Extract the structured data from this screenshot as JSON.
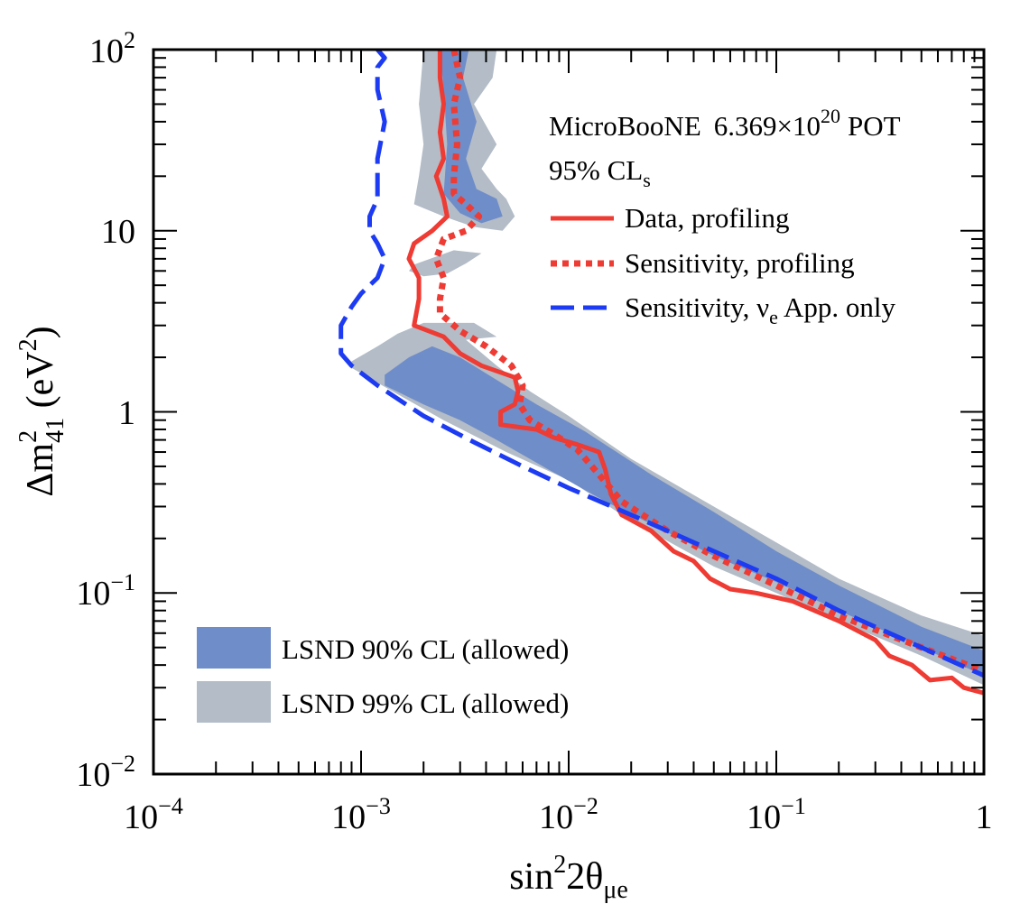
{
  "chart_data": {
    "type": "line",
    "title": "",
    "annotation": {
      "experiment": "MicroBooNE",
      "pot_mantissa": "6.369",
      "pot_times": "×10",
      "pot_exp": "20",
      "pot_unit": "POT",
      "cl_main": "95% CL",
      "cl_sub": "s"
    },
    "xlabel": {
      "main": "sin",
      "sup": "2",
      "mid": "2θ",
      "sub": "μe"
    },
    "ylabel": {
      "main": "Δm",
      "sup": "2",
      "sub": "41",
      "unit_open": " (eV",
      "unit_sup": "2",
      "unit_close": ")"
    },
    "xscale": "log",
    "yscale": "log",
    "xlim": [
      0.0001,
      1
    ],
    "ylim": [
      0.01,
      100
    ],
    "x_ticks": [
      {
        "value": 0.0001,
        "base": "10",
        "exp": "−4"
      },
      {
        "value": 0.001,
        "base": "10",
        "exp": "−3"
      },
      {
        "value": 0.01,
        "base": "10",
        "exp": "−2"
      },
      {
        "value": 0.1,
        "base": "10",
        "exp": "−1"
      },
      {
        "value": 1,
        "base": "1",
        "exp": ""
      }
    ],
    "y_ticks": [
      {
        "value": 0.01,
        "base": "10",
        "exp": "−2"
      },
      {
        "value": 0.1,
        "base": "10",
        "exp": "−1"
      },
      {
        "value": 1,
        "base": "1",
        "exp": ""
      },
      {
        "value": 10,
        "base": "10",
        "exp": ""
      },
      {
        "value": 100,
        "base": "10",
        "exp": "2"
      }
    ],
    "legend_lines": {
      "position": "top-right",
      "entries": [
        {
          "key": "data",
          "label": "Data, profiling",
          "color": "#ee3b33",
          "style": "solid"
        },
        {
          "key": "sens",
          "label": "Sensitivity, profiling",
          "color": "#ee3b33",
          "style": "dotted"
        },
        {
          "key": "sens_nue",
          "label_pre": "Sensitivity, ν",
          "label_sub": "e",
          "label_post": " App. only",
          "color": "#1c3bf2",
          "style": "dashed"
        }
      ]
    },
    "legend_regions": {
      "position": "bottom-left",
      "entries": [
        {
          "key": "lsnd90",
          "label": "LSND 90% CL (allowed)",
          "color": "#6f8dc8"
        },
        {
          "key": "lsnd99",
          "label": "LSND 99% CL (allowed)",
          "color": "#b3bcc7"
        }
      ]
    },
    "regions": [
      {
        "name": "LSND 99% CL (allowed)",
        "color": "#b3bcc7",
        "points": [
          [
            0.0009,
            1.9
          ],
          [
            0.0012,
            2.3
          ],
          [
            0.0015,
            2.7
          ],
          [
            0.002,
            3.1
          ],
          [
            0.0035,
            3.1
          ],
          [
            0.0045,
            2.6
          ],
          [
            0.0032,
            2.5
          ],
          [
            0.0045,
            1.8
          ],
          [
            0.0065,
            1.3
          ],
          [
            0.01,
            0.95
          ],
          [
            0.02,
            0.55
          ],
          [
            0.05,
            0.3
          ],
          [
            0.1,
            0.19
          ],
          [
            0.2,
            0.12
          ],
          [
            0.5,
            0.075
          ],
          [
            1,
            0.058
          ],
          [
            1,
            0.031
          ],
          [
            0.5,
            0.045
          ],
          [
            0.2,
            0.07
          ],
          [
            0.1,
            0.1
          ],
          [
            0.05,
            0.14
          ],
          [
            0.02,
            0.25
          ],
          [
            0.01,
            0.42
          ],
          [
            0.005,
            0.6
          ],
          [
            0.0025,
            0.9
          ],
          [
            0.0015,
            1.25
          ],
          [
            0.0009,
            1.75
          ]
        ]
      },
      {
        "name": "LSND 90% CL (allowed)",
        "color": "#6f8dc8",
        "points": [
          [
            0.0013,
            1.6
          ],
          [
            0.0017,
            2.0
          ],
          [
            0.0022,
            2.3
          ],
          [
            0.003,
            2.0
          ],
          [
            0.0045,
            1.5
          ],
          [
            0.007,
            1.1
          ],
          [
            0.012,
            0.78
          ],
          [
            0.025,
            0.45
          ],
          [
            0.05,
            0.28
          ],
          [
            0.1,
            0.17
          ],
          [
            0.2,
            0.11
          ],
          [
            0.5,
            0.065
          ],
          [
            1,
            0.048
          ],
          [
            1,
            0.035
          ],
          [
            0.5,
            0.05
          ],
          [
            0.2,
            0.08
          ],
          [
            0.1,
            0.115
          ],
          [
            0.05,
            0.16
          ],
          [
            0.025,
            0.24
          ],
          [
            0.015,
            0.32
          ],
          [
            0.008,
            0.48
          ],
          [
            0.0045,
            0.7
          ],
          [
            0.003,
            0.9
          ],
          [
            0.002,
            1.1
          ],
          [
            0.0013,
            1.4
          ]
        ]
      },
      {
        "name": "LSND 99% CL (allowed)",
        "color": "#b3bcc7",
        "points": [
          [
            0.002,
            100
          ],
          [
            0.0045,
            100
          ],
          [
            0.0043,
            70
          ],
          [
            0.0035,
            50
          ],
          [
            0.0045,
            30
          ],
          [
            0.0038,
            22
          ],
          [
            0.0045,
            17
          ],
          [
            0.005,
            15
          ],
          [
            0.0055,
            12
          ],
          [
            0.0048,
            10
          ],
          [
            0.0035,
            10.5
          ],
          [
            0.0025,
            12
          ],
          [
            0.0018,
            14
          ],
          [
            0.0019,
            20
          ],
          [
            0.002,
            30
          ],
          [
            0.0019,
            50
          ]
        ]
      },
      {
        "name": "LSND 90% CL (allowed)",
        "color": "#6f8dc8",
        "points": [
          [
            0.0024,
            100
          ],
          [
            0.0033,
            100
          ],
          [
            0.0031,
            70
          ],
          [
            0.0036,
            40
          ],
          [
            0.0032,
            25
          ],
          [
            0.0036,
            17
          ],
          [
            0.0045,
            15
          ],
          [
            0.0048,
            12
          ],
          [
            0.0038,
            11
          ],
          [
            0.003,
            12.5
          ],
          [
            0.0025,
            16
          ],
          [
            0.0026,
            30
          ],
          [
            0.0025,
            60
          ]
        ]
      },
      {
        "name": "LSND 99% CL (allowed)",
        "color": "#b3bcc7",
        "points": [
          [
            0.0018,
            6.5
          ],
          [
            0.0028,
            7.8
          ],
          [
            0.0038,
            7.5
          ],
          [
            0.0032,
            6.6
          ],
          [
            0.0026,
            5.8
          ],
          [
            0.002,
            5.6
          ],
          [
            0.0017,
            6.0
          ]
        ]
      }
    ],
    "series": [
      {
        "name": "Data, profiling",
        "color": "#ee3b33",
        "style": "solid",
        "points": [
          [
            0.0024,
            100
          ],
          [
            0.0024,
            70
          ],
          [
            0.0025,
            50
          ],
          [
            0.0024,
            35
          ],
          [
            0.0025,
            25
          ],
          [
            0.0023,
            20
          ],
          [
            0.0025,
            15
          ],
          [
            0.0026,
            12
          ],
          [
            0.0022,
            10
          ],
          [
            0.0018,
            8.5
          ],
          [
            0.0017,
            7
          ],
          [
            0.0019,
            5.5
          ],
          [
            0.0019,
            4.2
          ],
          [
            0.0018,
            3.0
          ],
          [
            0.0025,
            2.6
          ],
          [
            0.003,
            2.1
          ],
          [
            0.0038,
            1.8
          ],
          [
            0.0055,
            1.55
          ],
          [
            0.0057,
            1.3
          ],
          [
            0.0055,
            1.1
          ],
          [
            0.0047,
            1.0
          ],
          [
            0.0047,
            0.85
          ],
          [
            0.007,
            0.8
          ],
          [
            0.0085,
            0.72
          ],
          [
            0.011,
            0.66
          ],
          [
            0.014,
            0.6
          ],
          [
            0.015,
            0.48
          ],
          [
            0.016,
            0.35
          ],
          [
            0.018,
            0.27
          ],
          [
            0.025,
            0.22
          ],
          [
            0.032,
            0.17
          ],
          [
            0.04,
            0.15
          ],
          [
            0.048,
            0.12
          ],
          [
            0.06,
            0.105
          ],
          [
            0.08,
            0.1
          ],
          [
            0.12,
            0.09
          ],
          [
            0.2,
            0.07
          ],
          [
            0.3,
            0.055
          ],
          [
            0.35,
            0.045
          ],
          [
            0.45,
            0.04
          ],
          [
            0.55,
            0.033
          ],
          [
            0.7,
            0.034
          ],
          [
            0.8,
            0.03
          ],
          [
            1,
            0.028
          ]
        ]
      },
      {
        "name": "Sensitivity, profiling",
        "color": "#ee3b33",
        "style": "dotted",
        "points": [
          [
            0.0028,
            100
          ],
          [
            0.003,
            70
          ],
          [
            0.0028,
            50
          ],
          [
            0.0029,
            30
          ],
          [
            0.0028,
            20
          ],
          [
            0.0028,
            16
          ],
          [
            0.0032,
            14
          ],
          [
            0.0037,
            12
          ],
          [
            0.0032,
            10
          ],
          [
            0.0025,
            9
          ],
          [
            0.0023,
            7
          ],
          [
            0.0025,
            5.5
          ],
          [
            0.0024,
            4.2
          ],
          [
            0.0024,
            3.5
          ],
          [
            0.003,
            2.8
          ],
          [
            0.004,
            2.3
          ],
          [
            0.0053,
            1.8
          ],
          [
            0.006,
            1.4
          ],
          [
            0.0058,
            1.1
          ],
          [
            0.0065,
            0.9
          ],
          [
            0.0085,
            0.75
          ],
          [
            0.011,
            0.62
          ],
          [
            0.014,
            0.45
          ],
          [
            0.018,
            0.32
          ],
          [
            0.03,
            0.22
          ],
          [
            0.05,
            0.16
          ],
          [
            0.1,
            0.11
          ],
          [
            0.2,
            0.075
          ],
          [
            0.5,
            0.05
          ],
          [
            1,
            0.037
          ]
        ]
      },
      {
        "name": "Sensitivity, νe App. only",
        "color": "#1c3bf2",
        "style": "dashed",
        "points": [
          [
            0.0012,
            100
          ],
          [
            0.0013,
            90
          ],
          [
            0.0012,
            80
          ],
          [
            0.0012,
            60
          ],
          [
            0.0013,
            40
          ],
          [
            0.0012,
            25
          ],
          [
            0.0012,
            15
          ],
          [
            0.0011,
            12
          ],
          [
            0.0011,
            10
          ],
          [
            0.0012,
            8.5
          ],
          [
            0.0013,
            7
          ],
          [
            0.0012,
            5.5
          ],
          [
            0.001,
            4.5
          ],
          [
            0.0009,
            3.8
          ],
          [
            0.0008,
            3.0
          ],
          [
            0.0008,
            2.5
          ],
          [
            0.0008,
            2.1
          ],
          [
            0.0009,
            1.8
          ],
          [
            0.0012,
            1.4
          ],
          [
            0.002,
            0.95
          ],
          [
            0.0035,
            0.68
          ],
          [
            0.006,
            0.5
          ],
          [
            0.01,
            0.38
          ],
          [
            0.02,
            0.27
          ],
          [
            0.05,
            0.17
          ],
          [
            0.1,
            0.12
          ],
          [
            0.2,
            0.08
          ],
          [
            0.5,
            0.05
          ],
          [
            1,
            0.035
          ]
        ]
      }
    ]
  }
}
